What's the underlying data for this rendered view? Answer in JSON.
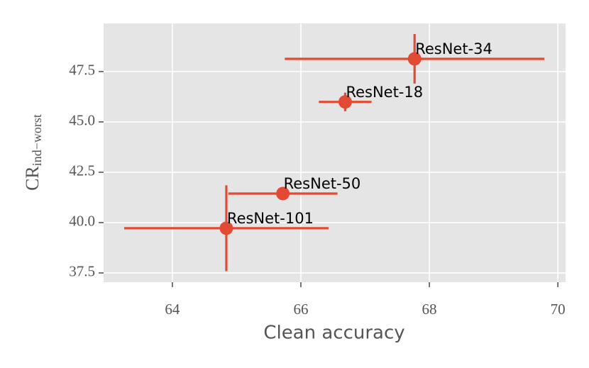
{
  "chart_data": {
    "type": "scatter",
    "xlabel": "Clean accuracy",
    "ylabel": "CR",
    "ylabel_sub": "ind−worst",
    "labels": [
      "ResNet-34",
      "ResNet-18",
      "ResNet-50",
      "ResNet-101"
    ],
    "x": [
      67.77,
      66.69,
      65.72,
      64.84
    ],
    "y": [
      48.13,
      45.99,
      41.44,
      39.72
    ],
    "xerr": [
      2.02,
      0.41,
      0.85,
      1.59
    ],
    "yerr": [
      1.23,
      0.46,
      0,
      2.13
    ],
    "color": "#e24a33",
    "xlim": [
      62.93,
      70.12
    ],
    "ylim": [
      37.04,
      49.89
    ],
    "xticks": [
      64,
      66,
      68,
      70
    ],
    "yticks": [
      37.5,
      {
        "value": 40,
        "label": "40.0"
      },
      42.5,
      {
        "value": 45,
        "label": "45.0"
      },
      47.5
    ],
    "grid": true
  }
}
